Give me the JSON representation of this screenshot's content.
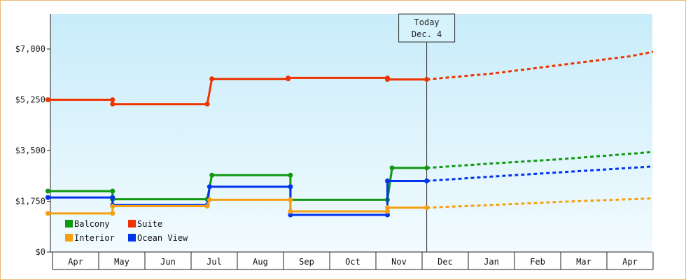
{
  "chart_data": {
    "type": "line",
    "title": "",
    "xlabel": "",
    "ylabel": "",
    "ylim": [
      0,
      7000
    ],
    "y_ticks": [
      0,
      1750,
      3500,
      5250,
      7000
    ],
    "y_tick_labels": [
      "$0",
      "$1,750",
      "$3,500",
      "$5,250",
      "$7,000"
    ],
    "months": [
      "Apr",
      "May",
      "Jun",
      "Jul",
      "Aug",
      "Sep",
      "Oct",
      "Nov",
      "Dec",
      "Jan",
      "Feb",
      "Mar",
      "Apr"
    ],
    "x_range_months": [
      0,
      13
    ],
    "today_marker": {
      "line1": "Today",
      "line2": "Dec. 4",
      "x_month": 8.1
    },
    "legend_placement": "bottom-left",
    "series": [
      {
        "name": "Suite",
        "color": "#ee3300",
        "history": [
          [
            -0.1,
            5250
          ],
          [
            1.3,
            5250
          ],
          [
            1.3,
            5100
          ],
          [
            3.35,
            5100
          ],
          [
            3.45,
            5970
          ],
          [
            5.1,
            5970
          ],
          [
            5.1,
            6000
          ],
          [
            7.25,
            6000
          ],
          [
            7.25,
            5950
          ],
          [
            8.1,
            5950
          ]
        ],
        "projection": [
          [
            8.1,
            5950
          ],
          [
            9.5,
            6150
          ],
          [
            11.0,
            6450
          ],
          [
            12.5,
            6750
          ],
          [
            13.0,
            6900
          ]
        ]
      },
      {
        "name": "Balcony",
        "color": "#109910",
        "history": [
          [
            -0.1,
            2100
          ],
          [
            1.3,
            2100
          ],
          [
            1.3,
            1820
          ],
          [
            3.35,
            1820
          ],
          [
            3.45,
            2650
          ],
          [
            5.15,
            2650
          ],
          [
            5.15,
            1800
          ],
          [
            7.25,
            1800
          ],
          [
            7.35,
            2900
          ],
          [
            8.1,
            2900
          ]
        ],
        "projection": [
          [
            8.1,
            2900
          ],
          [
            9.5,
            3050
          ],
          [
            11.0,
            3200
          ],
          [
            13.0,
            3450
          ]
        ]
      },
      {
        "name": "Ocean View",
        "color": "#0033ee",
        "history": [
          [
            -0.1,
            1880
          ],
          [
            1.3,
            1880
          ],
          [
            1.3,
            1620
          ],
          [
            3.35,
            1620
          ],
          [
            3.4,
            2250
          ],
          [
            5.15,
            2250
          ],
          [
            5.15,
            1280
          ],
          [
            7.25,
            1280
          ],
          [
            7.25,
            2450
          ],
          [
            8.1,
            2450
          ]
        ],
        "projection": [
          [
            8.1,
            2450
          ],
          [
            9.5,
            2600
          ],
          [
            11.0,
            2750
          ],
          [
            13.0,
            2950
          ]
        ]
      },
      {
        "name": "Interior",
        "color": "#f5a010",
        "history": [
          [
            -0.1,
            1330
          ],
          [
            1.3,
            1330
          ],
          [
            1.3,
            1580
          ],
          [
            3.35,
            1580
          ],
          [
            3.4,
            1800
          ],
          [
            5.15,
            1800
          ],
          [
            5.15,
            1400
          ],
          [
            7.25,
            1400
          ],
          [
            7.25,
            1530
          ],
          [
            8.1,
            1530
          ]
        ],
        "projection": [
          [
            8.1,
            1530
          ],
          [
            9.5,
            1620
          ],
          [
            11.0,
            1730
          ],
          [
            13.0,
            1850
          ]
        ]
      }
    ],
    "legend_order": [
      "Balcony",
      "Suite",
      "Interior",
      "Ocean View"
    ]
  }
}
